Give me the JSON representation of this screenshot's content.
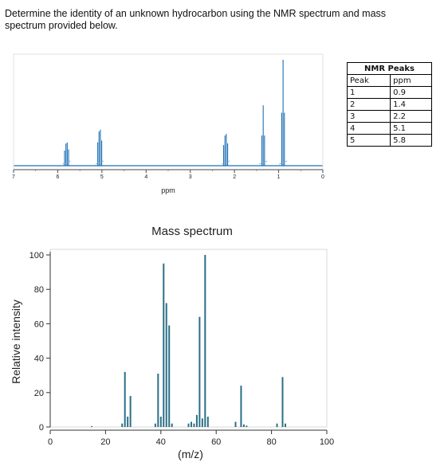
{
  "question": "Determine the identity of an unknown hydrocarbon using the NMR spectrum and mass spectrum provided below.",
  "nmr_table": {
    "title": "NMR Peaks",
    "headers": [
      "Peak",
      "ppm"
    ],
    "rows": [
      [
        "1",
        "0.9"
      ],
      [
        "2",
        "1.4"
      ],
      [
        "3",
        "2.2"
      ],
      [
        "4",
        "5.1"
      ],
      [
        "5",
        "5.8"
      ]
    ]
  },
  "chart_data": [
    {
      "type": "line",
      "title": "",
      "xlabel": "ppm",
      "ylabel": "",
      "xlim": [
        7,
        0
      ],
      "x_reversed": true,
      "xticks": [
        "7",
        "6",
        "5",
        "4",
        "3",
        "2",
        "1",
        "0"
      ],
      "color": "#1f6fb5",
      "peaks": [
        {
          "ppm": 5.8,
          "height": 0.22
        },
        {
          "ppm": 5.05,
          "height": 0.34
        },
        {
          "ppm": 2.2,
          "height": 0.3
        },
        {
          "ppm": 1.35,
          "height": 0.57
        },
        {
          "ppm": 0.9,
          "height": 1.0
        }
      ]
    },
    {
      "type": "bar",
      "title": "Mass spectrum",
      "xlabel": "(m/z)",
      "ylabel": "Relative intensity",
      "xlim": [
        0,
        100
      ],
      "ylim": [
        0,
        100
      ],
      "xticks": [
        0,
        20,
        40,
        60,
        80,
        100
      ],
      "yticks": [
        0,
        20,
        40,
        60,
        80,
        100
      ],
      "color": "#2a6f86",
      "x": [
        15,
        26,
        27,
        28,
        29,
        38,
        39,
        40,
        41,
        42,
        43,
        44,
        50,
        51,
        52,
        53,
        54,
        55,
        56,
        57,
        67,
        69,
        70,
        71,
        82,
        84,
        85
      ],
      "values": [
        0.5,
        2,
        32,
        6,
        18,
        2,
        31,
        6,
        95,
        72,
        59,
        2,
        2,
        3,
        2,
        7,
        64,
        5,
        100,
        6,
        3,
        24,
        1.5,
        0.8,
        2,
        29,
        2
      ]
    }
  ]
}
